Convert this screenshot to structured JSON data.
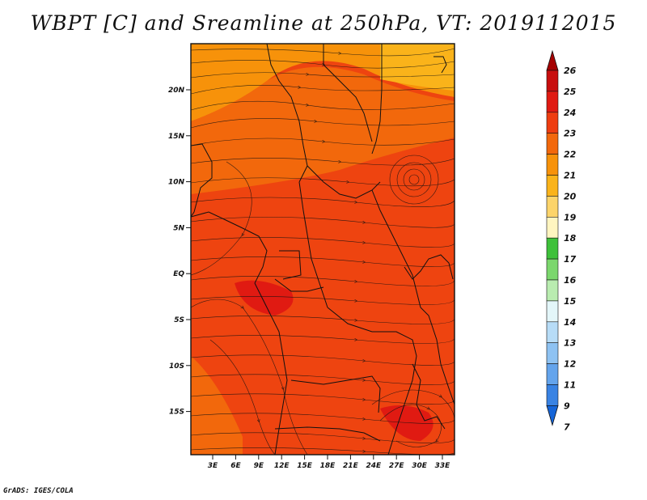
{
  "title": "WBPT [C] and Sreamline at 250hPa, VT: 2019112015",
  "credit": "GrADS: IGES/COLA",
  "map": {
    "lat_labels": [
      "20N",
      "15N",
      "10N",
      "5N",
      "EQ",
      "5S",
      "10S",
      "15S"
    ],
    "lon_labels": [
      "3E",
      "6E",
      "9E",
      "12E",
      "15E",
      "18E",
      "21E",
      "24E",
      "27E",
      "30E",
      "33E"
    ],
    "background_color": "#ee4410"
  },
  "colorbar": {
    "labels": [
      "26",
      "25",
      "24",
      "23",
      "22",
      "21",
      "20",
      "19",
      "18",
      "17",
      "16",
      "15",
      "14",
      "13",
      "12",
      "11",
      "9",
      "7"
    ],
    "colors": [
      "#a50000",
      "#c80e0e",
      "#e01a12",
      "#ee3d10",
      "#f2680c",
      "#f7920a",
      "#fab31a",
      "#fcd46a",
      "#fff5c0",
      "#3ec13a",
      "#7bd76d",
      "#b9ecb0",
      "#e3f6f9",
      "#b7dcf7",
      "#8ec2f2",
      "#64a4ec",
      "#3983e3",
      "#1565d8"
    ]
  }
}
